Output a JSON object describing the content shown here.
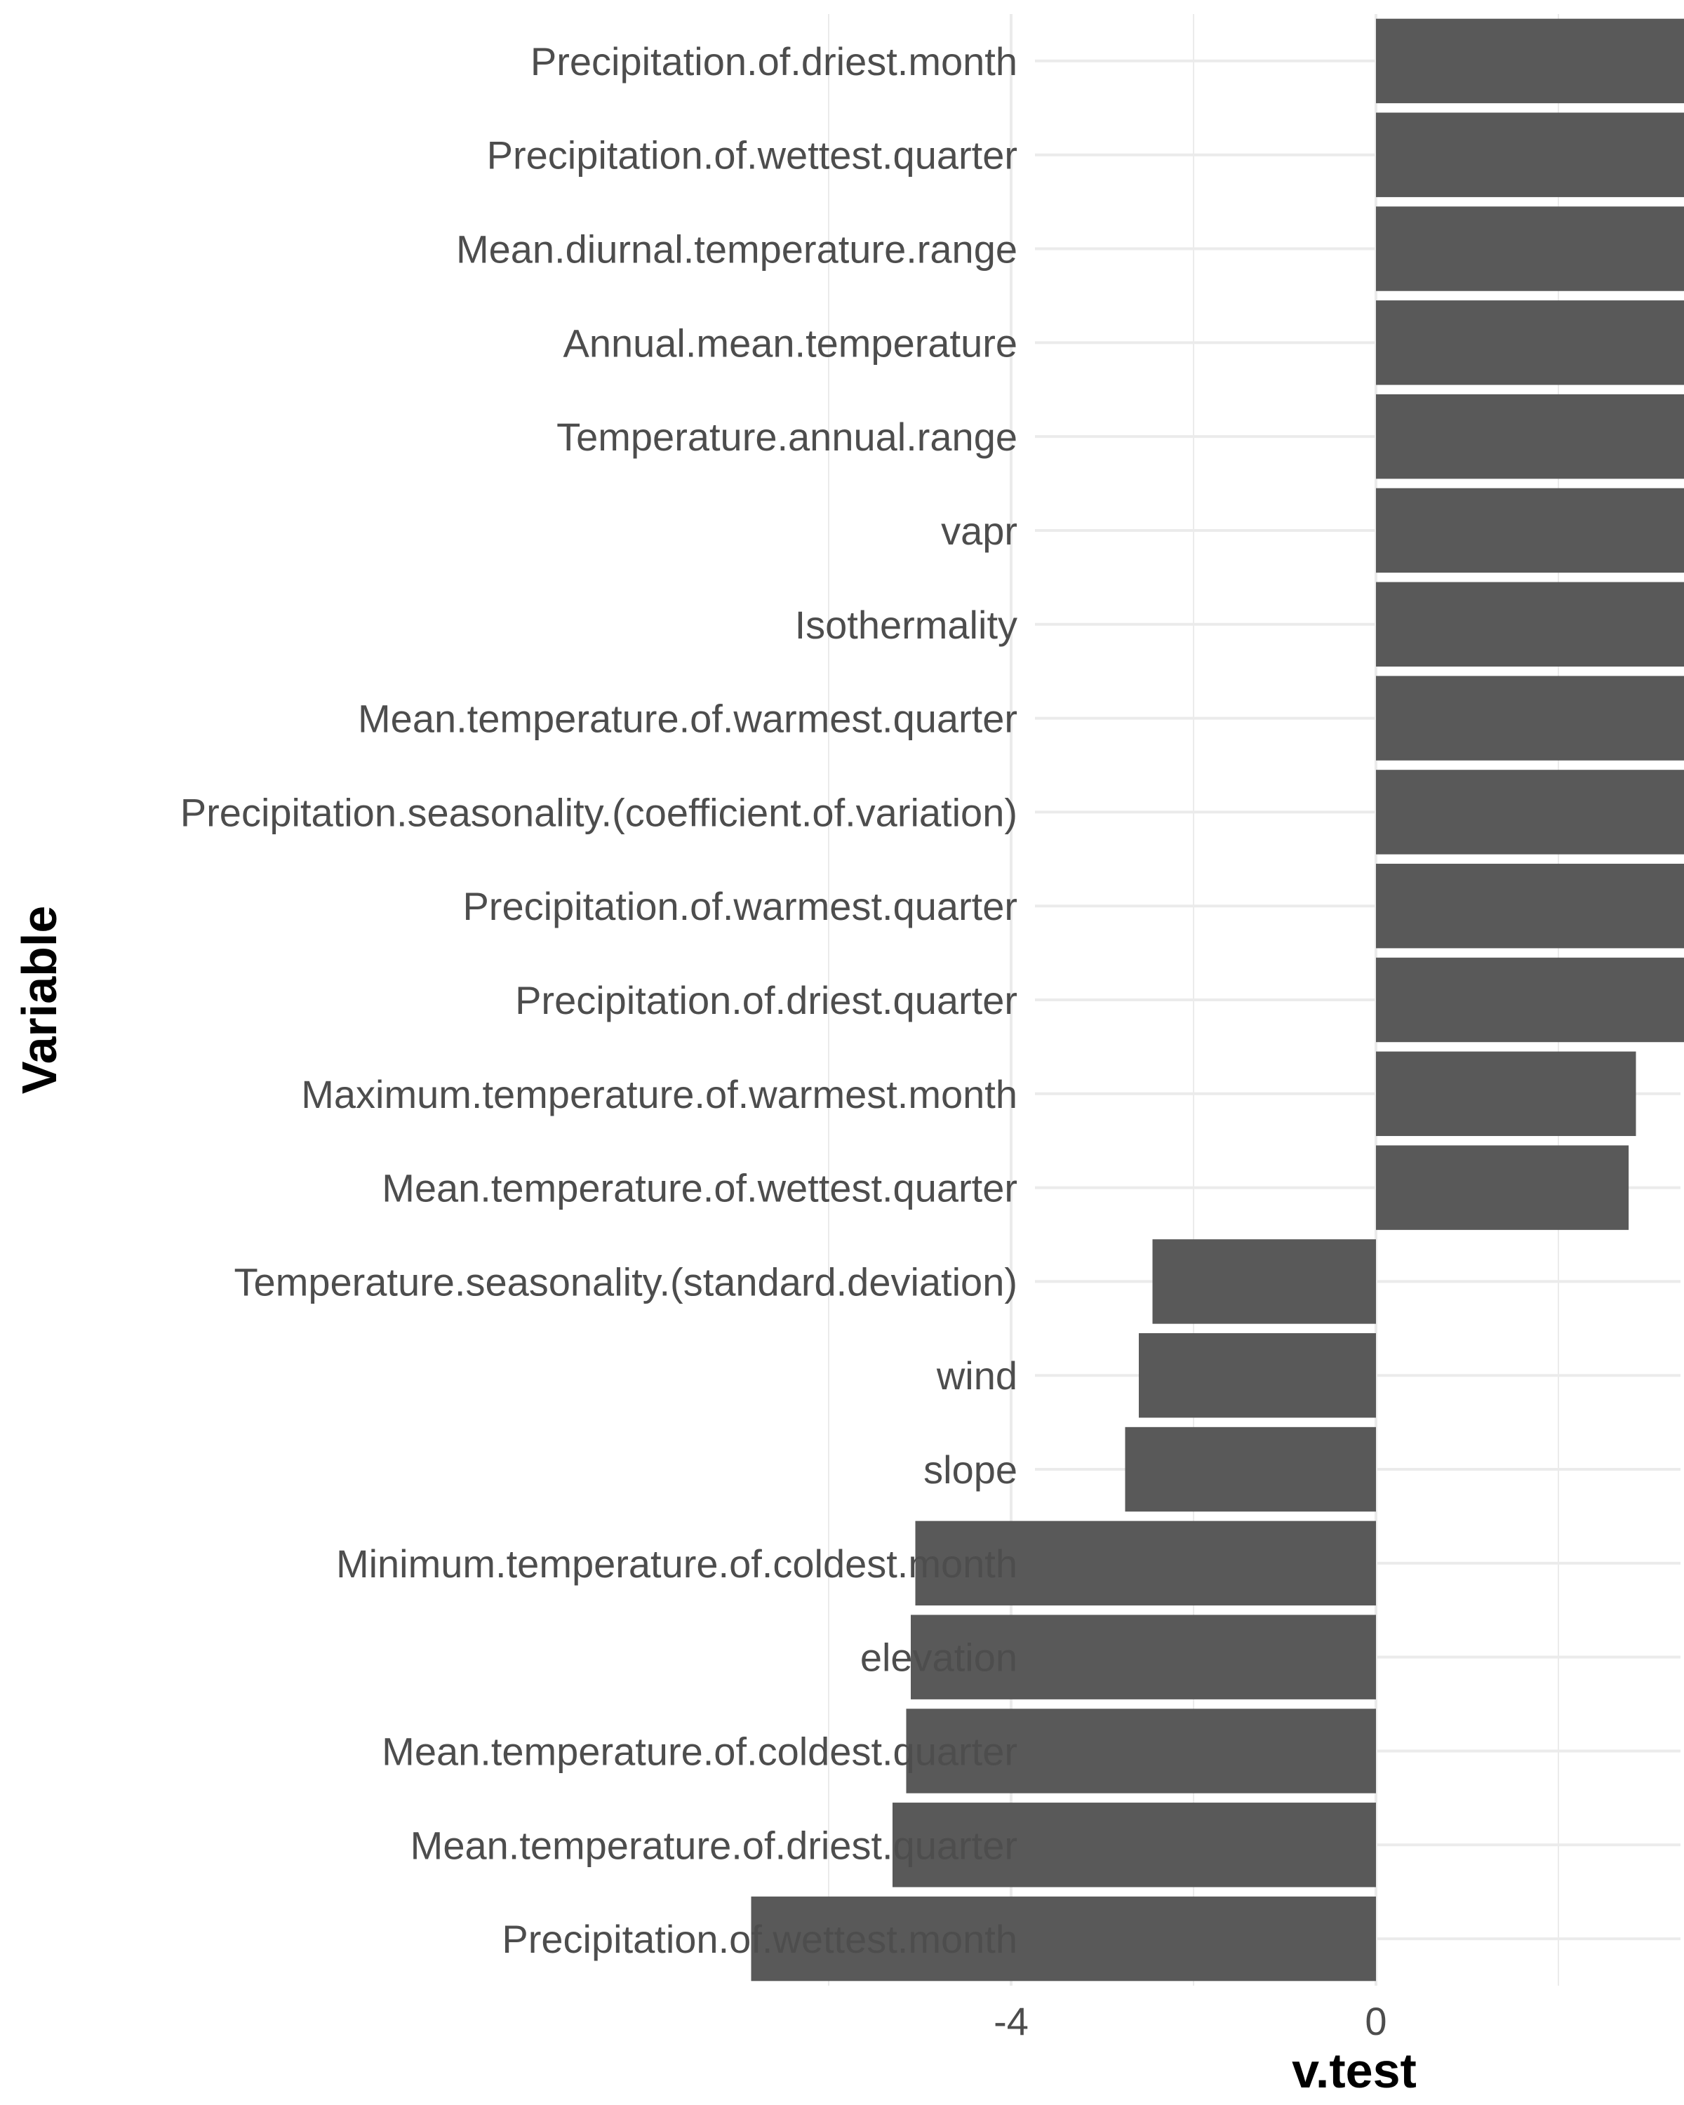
{
  "chart_data": {
    "type": "bar",
    "orientation": "horizontal",
    "xlabel": "v.test",
    "ylabel": "Variable",
    "xlim": [
      -7.3,
      6.6
    ],
    "xticks": [
      -4,
      0,
      4
    ],
    "grid": true,
    "bar_color": "#595959",
    "grid_color": "#ebebeb",
    "categories": [
      "Precipitation.of.driest.month",
      "Precipitation.of.wettest.quarter",
      "Mean.diurnal.temperature.range",
      "Annual.mean.temperature",
      "Temperature.annual.range",
      "vapr",
      "Isothermality",
      "Mean.temperature.of.warmest.quarter",
      "Precipitation.seasonality.(coefficient.of.variation)",
      "Precipitation.of.warmest.quarter",
      "Precipitation.of.driest.quarter",
      "Maximum.temperature.of.warmest.month",
      "Mean.temperature.of.wettest.quarter",
      "Temperature.seasonality.(standard.deviation)",
      "wind",
      "slope",
      "Minimum.temperature.of.coldest.month",
      "elevation",
      "Mean.temperature.of.coldest.quarter",
      "Mean.temperature.of.driest.quarter",
      "Precipitation.of.wettest.month"
    ],
    "values": [
      5.9,
      5.8,
      5.5,
      5.45,
      5.42,
      5.3,
      5.15,
      5.1,
      4.8,
      4.8,
      3.55,
      2.85,
      2.77,
      -2.45,
      -2.6,
      -2.75,
      -5.05,
      -5.1,
      -5.15,
      -5.3,
      -6.85
    ]
  }
}
